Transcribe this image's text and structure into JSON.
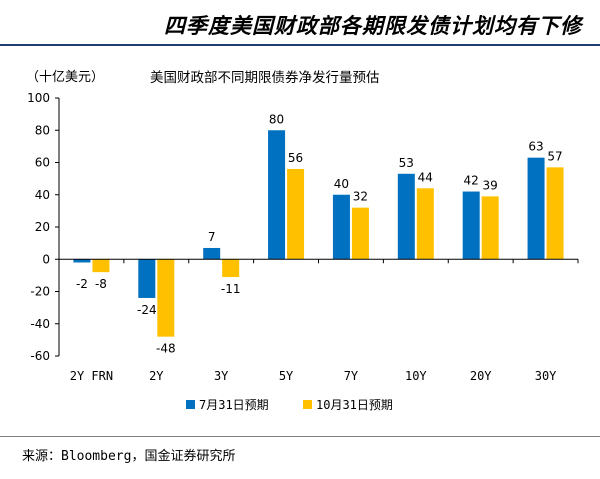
{
  "header": {
    "title": "四季度美国财政部各期限发债计划均有下修"
  },
  "source": "来源：Bloomberg，国金证券研究所",
  "chart_data": {
    "type": "bar",
    "title": "美国财政部不同期限债券净发行量预估",
    "ylabel": "（十亿美元）",
    "xlabel": "",
    "ylim": [
      -60,
      100
    ],
    "yticks": [
      -60,
      -40,
      -20,
      0,
      20,
      40,
      60,
      80,
      100
    ],
    "categories": [
      "2Y FRN",
      "2Y",
      "3Y",
      "5Y",
      "7Y",
      "10Y",
      "20Y",
      "30Y"
    ],
    "series": [
      {
        "name": "7月31日预期",
        "color": "#0070C0",
        "values": [
          -2,
          -24,
          7,
          80,
          40,
          53,
          42,
          63
        ]
      },
      {
        "name": "10月31日预期",
        "color": "#FFC000",
        "values": [
          -8,
          -48,
          -11,
          56,
          32,
          44,
          39,
          57
        ]
      }
    ],
    "legend_position": "bottom-center",
    "grid": false
  }
}
